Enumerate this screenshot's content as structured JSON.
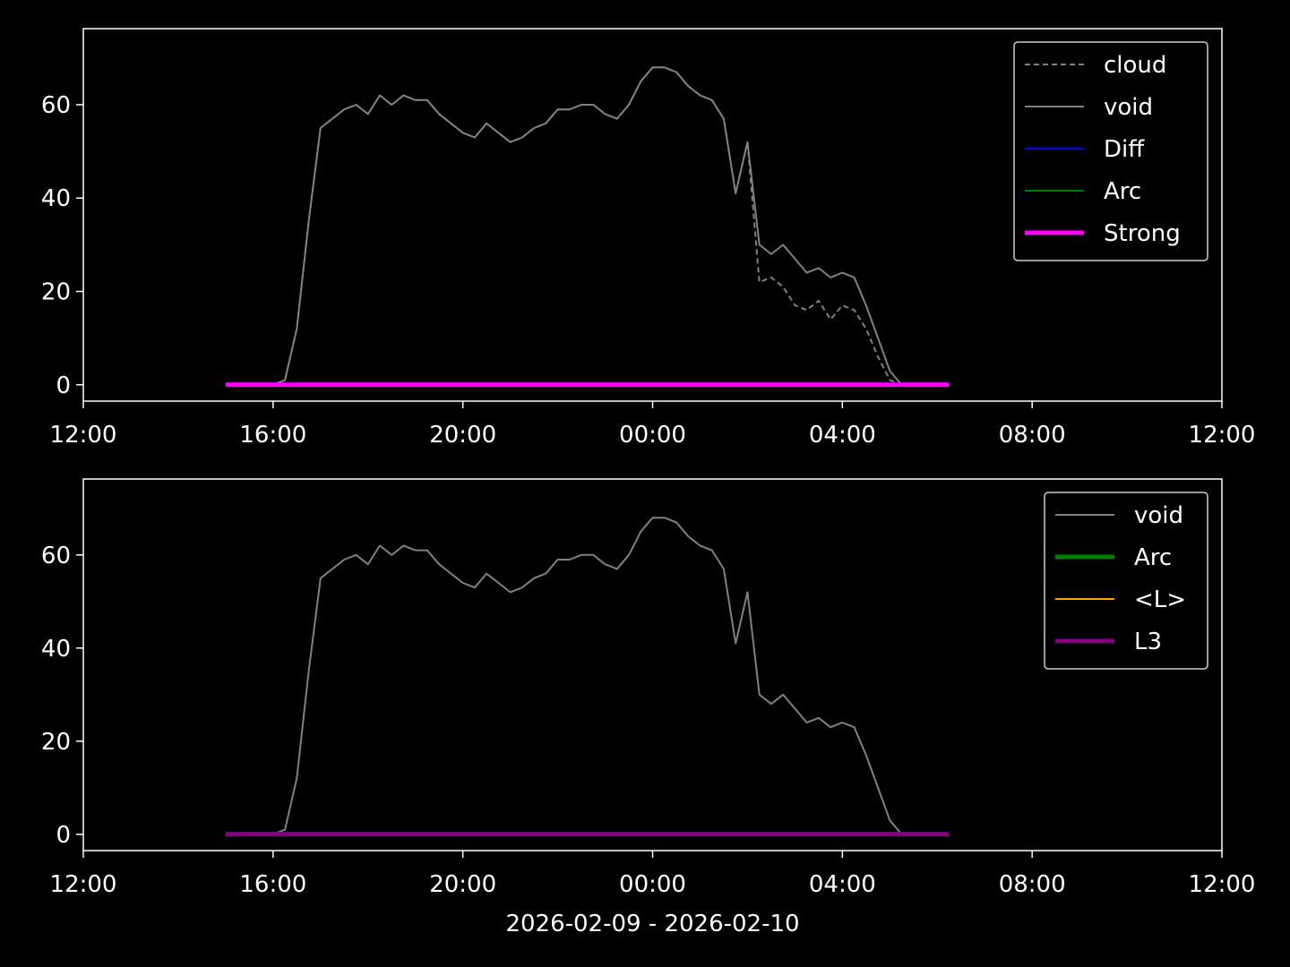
{
  "chart_data": [
    {
      "type": "line",
      "x": [
        15.0,
        15.25,
        15.5,
        15.75,
        16.0,
        16.25,
        16.5,
        16.75,
        17.0,
        17.25,
        17.5,
        17.75,
        18.0,
        18.25,
        18.5,
        18.75,
        19.0,
        19.25,
        19.5,
        19.75,
        20.0,
        20.25,
        20.5,
        20.75,
        21.0,
        21.25,
        21.5,
        21.75,
        22.0,
        22.25,
        22.5,
        22.75,
        23.0,
        23.25,
        23.5,
        23.75,
        24.0,
        24.25,
        24.5,
        24.75,
        25.0,
        25.25,
        25.5,
        25.75,
        26.0,
        26.25,
        26.5,
        26.75,
        27.0,
        27.25,
        27.5,
        27.75,
        28.0,
        28.25,
        28.5,
        28.75,
        29.0,
        29.25,
        29.5,
        29.75,
        30.0,
        30.25
      ],
      "series": [
        {
          "name": "cloud",
          "color": "#808080",
          "dashed": true,
          "linewidth": 2,
          "values": [
            0,
            0,
            0,
            0,
            0,
            1,
            12,
            35,
            55,
            57,
            59,
            60,
            58,
            62,
            60,
            62,
            61,
            61,
            58,
            56,
            54,
            53,
            56,
            54,
            52,
            53,
            55,
            56,
            59,
            59,
            60,
            60,
            58,
            57,
            60,
            65,
            68,
            68,
            67,
            64,
            62,
            61,
            57,
            41,
            52,
            22,
            23,
            21,
            17,
            16,
            18,
            14,
            17,
            16,
            12,
            6,
            1,
            0,
            0,
            0,
            0,
            0
          ]
        },
        {
          "name": "void",
          "color": "#808080",
          "linewidth": 2,
          "values": [
            0,
            0,
            0,
            0,
            0,
            1,
            12,
            35,
            55,
            57,
            59,
            60,
            58,
            62,
            60,
            62,
            61,
            61,
            58,
            56,
            54,
            53,
            56,
            54,
            52,
            53,
            55,
            56,
            59,
            59,
            60,
            60,
            58,
            57,
            60,
            65,
            68,
            68,
            67,
            64,
            62,
            61,
            57,
            41,
            52,
            30,
            28,
            30,
            27,
            24,
            25,
            23,
            24,
            23,
            17,
            10,
            3,
            0,
            0,
            0,
            0,
            0
          ]
        },
        {
          "name": "Diff",
          "color": "#0000ff",
          "linewidth": 2,
          "values": [
            0,
            0,
            0,
            0,
            0,
            0,
            0,
            0,
            0,
            0,
            0,
            0,
            0,
            0,
            0,
            0,
            0,
            0,
            0,
            0,
            0,
            0,
            0,
            0,
            0,
            0,
            0,
            0,
            0,
            0,
            0,
            0,
            0,
            0,
            0,
            0,
            0,
            0,
            0,
            0,
            0,
            0,
            0,
            0,
            0,
            0,
            0,
            0,
            0,
            0,
            0,
            0,
            0,
            0,
            0,
            0,
            0,
            0,
            0,
            0,
            0,
            0
          ]
        },
        {
          "name": "Arc",
          "color": "#008000",
          "linewidth": 2,
          "values": [
            0,
            0,
            0,
            0,
            0,
            0,
            0,
            0,
            0,
            0,
            0,
            0,
            0,
            0,
            0,
            0,
            0,
            0,
            0,
            0,
            0,
            0,
            0,
            0,
            0,
            0,
            0,
            0,
            0,
            0,
            0,
            0,
            0,
            0,
            0,
            0,
            0,
            0,
            0,
            0,
            0,
            0,
            0,
            0,
            0,
            0,
            0,
            0,
            0,
            0,
            0,
            0,
            0,
            0,
            0,
            0,
            0,
            0,
            0,
            0,
            0,
            0
          ]
        },
        {
          "name": "Strong",
          "color": "#ff00ff",
          "linewidth": 5,
          "values": [
            0,
            0,
            0,
            0,
            0,
            0,
            0,
            0,
            0,
            0,
            0,
            0,
            0,
            0,
            0,
            0,
            0,
            0,
            0,
            0,
            0,
            0,
            0,
            0,
            0,
            0,
            0,
            0,
            0,
            0,
            0,
            0,
            0,
            0,
            0,
            0,
            0,
            0,
            0,
            0,
            0,
            0,
            0,
            0,
            0,
            0,
            0,
            0,
            0,
            0,
            0,
            0,
            0,
            0,
            0,
            0,
            0,
            0,
            0,
            0,
            0,
            0
          ]
        }
      ],
      "xlim": [
        12,
        36
      ],
      "xticks": [
        {
          "value": 12,
          "label": "12:00"
        },
        {
          "value": 16,
          "label": "16:00"
        },
        {
          "value": 20,
          "label": "20:00"
        },
        {
          "value": 24,
          "label": "00:00"
        },
        {
          "value": 28,
          "label": "04:00"
        },
        {
          "value": 32,
          "label": "08:00"
        },
        {
          "value": 36,
          "label": "12:00"
        }
      ],
      "ylim": [
        -3.5,
        76.3
      ],
      "yticks": [
        0,
        20,
        40,
        60
      ],
      "legend": "upper right"
    },
    {
      "type": "line",
      "x": [
        15.0,
        15.25,
        15.5,
        15.75,
        16.0,
        16.25,
        16.5,
        16.75,
        17.0,
        17.25,
        17.5,
        17.75,
        18.0,
        18.25,
        18.5,
        18.75,
        19.0,
        19.25,
        19.5,
        19.75,
        20.0,
        20.25,
        20.5,
        20.75,
        21.0,
        21.25,
        21.5,
        21.75,
        22.0,
        22.25,
        22.5,
        22.75,
        23.0,
        23.25,
        23.5,
        23.75,
        24.0,
        24.25,
        24.5,
        24.75,
        25.0,
        25.25,
        25.5,
        25.75,
        26.0,
        26.25,
        26.5,
        26.75,
        27.0,
        27.25,
        27.5,
        27.75,
        28.0,
        28.25,
        28.5,
        28.75,
        29.0,
        29.25,
        29.5,
        29.75,
        30.0,
        30.25
      ],
      "series": [
        {
          "name": "void",
          "color": "#808080",
          "linewidth": 2,
          "values": [
            0,
            0,
            0,
            0,
            0,
            1,
            12,
            35,
            55,
            57,
            59,
            60,
            58,
            62,
            60,
            62,
            61,
            61,
            58,
            56,
            54,
            53,
            56,
            54,
            52,
            53,
            55,
            56,
            59,
            59,
            60,
            60,
            58,
            57,
            60,
            65,
            68,
            68,
            67,
            64,
            62,
            61,
            57,
            41,
            52,
            30,
            28,
            30,
            27,
            24,
            25,
            23,
            24,
            23,
            17,
            10,
            3,
            0,
            0,
            0,
            0,
            0
          ]
        },
        {
          "name": "Arc",
          "color": "#008000",
          "linewidth": 5,
          "values": [
            0,
            0,
            0,
            0,
            0,
            0,
            0,
            0,
            0,
            0,
            0,
            0,
            0,
            0,
            0,
            0,
            0,
            0,
            0,
            0,
            0,
            0,
            0,
            0,
            0,
            0,
            0,
            0,
            0,
            0,
            0,
            0,
            0,
            0,
            0,
            0,
            0,
            0,
            0,
            0,
            0,
            0,
            0,
            0,
            0,
            0,
            0,
            0,
            0,
            0,
            0,
            0,
            0,
            0,
            0,
            0,
            0,
            0,
            0,
            0,
            0,
            0
          ]
        },
        {
          "name": "<L>",
          "color": "#ffa500",
          "linewidth": 2,
          "values": [
            0,
            0,
            0,
            0,
            0,
            0,
            0,
            0,
            0,
            0,
            0,
            0,
            0,
            0,
            0,
            0,
            0,
            0,
            0,
            0,
            0,
            0,
            0,
            0,
            0,
            0,
            0,
            0,
            0,
            0,
            0,
            0,
            0,
            0,
            0,
            0,
            0,
            0,
            0,
            0,
            0,
            0,
            0,
            0,
            0,
            0,
            0,
            0,
            0,
            0,
            0,
            0,
            0,
            0,
            0,
            0,
            0,
            0,
            0,
            0,
            0,
            0
          ]
        },
        {
          "name": "L3",
          "color": "#800080",
          "linewidth": 5,
          "values": [
            0,
            0,
            0,
            0,
            0,
            0,
            0,
            0,
            0,
            0,
            0,
            0,
            0,
            0,
            0,
            0,
            0,
            0,
            0,
            0,
            0,
            0,
            0,
            0,
            0,
            0,
            0,
            0,
            0,
            0,
            0,
            0,
            0,
            0,
            0,
            0,
            0,
            0,
            0,
            0,
            0,
            0,
            0,
            0,
            0,
            0,
            0,
            0,
            0,
            0,
            0,
            0,
            0,
            0,
            0,
            0,
            0,
            0,
            0,
            0,
            0,
            0
          ]
        }
      ],
      "xlim": [
        12,
        36
      ],
      "xticks": [
        {
          "value": 12,
          "label": "12:00"
        },
        {
          "value": 16,
          "label": "16:00"
        },
        {
          "value": 20,
          "label": "20:00"
        },
        {
          "value": 24,
          "label": "00:00"
        },
        {
          "value": 28,
          "label": "04:00"
        },
        {
          "value": 32,
          "label": "08:00"
        },
        {
          "value": 36,
          "label": "12:00"
        }
      ],
      "xlabel": "2026-02-09 - 2026-02-10",
      "ylim": [
        -3.5,
        76.3
      ],
      "yticks": [
        0,
        20,
        40,
        60
      ],
      "legend": "upper right"
    }
  ]
}
